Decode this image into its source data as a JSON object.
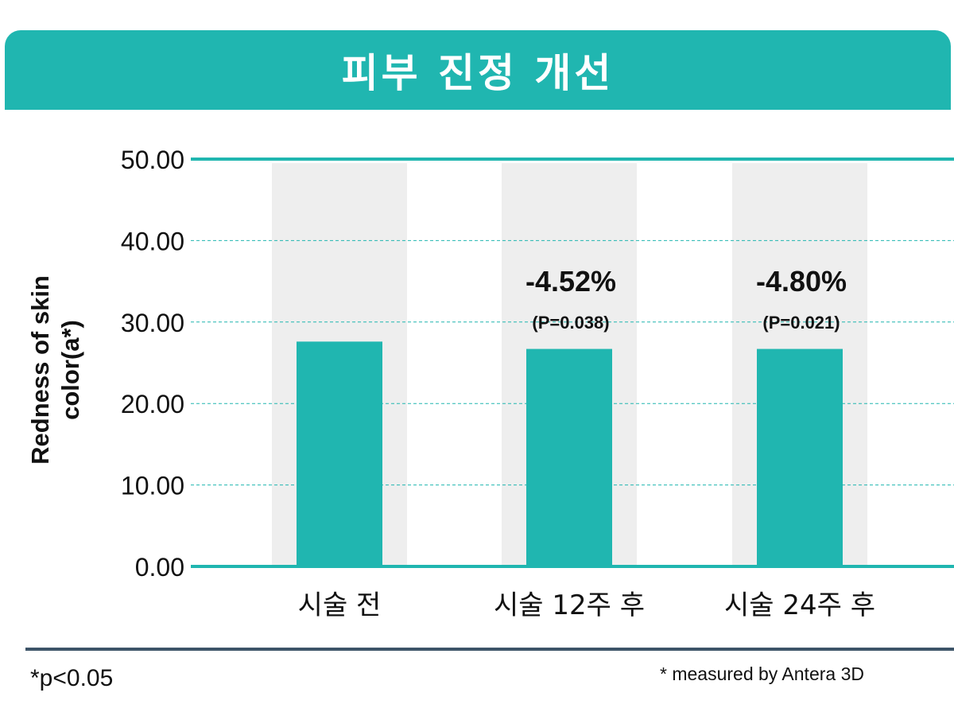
{
  "title": "피부 진정 개선",
  "colors": {
    "banner": "#20b6b0",
    "bar": "#20b6b0",
    "column_band": "#eeeeee",
    "axis": "#20b6b0",
    "footer_rule": "#3d5468"
  },
  "chart_data": {
    "type": "bar",
    "ylabel": "Redness of skin color(a*)",
    "ylim": [
      0,
      50
    ],
    "yticks": [
      "0.00",
      "10.00",
      "20.00",
      "30.00",
      "40.00",
      "50.00"
    ],
    "grid": "horizontal dashed",
    "categories": [
      "시술 전",
      "시술 12주 후",
      "시술 24주 후"
    ],
    "values": [
      27.6,
      26.7,
      26.7
    ],
    "annotations": [
      {
        "category": "시술 12주 후",
        "change": "-4.52%",
        "p_value": "(P=0.038)"
      },
      {
        "category": "시술 24주 후",
        "change": "-4.80%",
        "p_value": "(P=0.021)"
      }
    ]
  },
  "footnotes": {
    "significance": "*p<0.05",
    "source": "* measured by Antera 3D"
  }
}
